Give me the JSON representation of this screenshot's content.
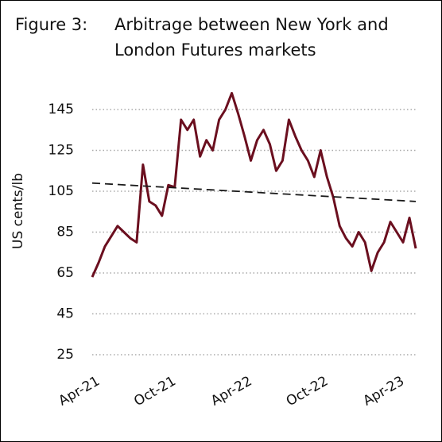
{
  "chart_data": {
    "type": "line",
    "figure_label": "Figure 3:",
    "title": "Arbitrage between New York and London Futures markets",
    "y_label": "US cents/lb",
    "categories": [
      "Apr-21",
      null,
      null,
      null,
      null,
      null,
      null,
      null,
      null,
      null,
      null,
      null,
      "Oct-21",
      null,
      null,
      null,
      null,
      null,
      null,
      null,
      null,
      null,
      null,
      null,
      "Apr-22",
      null,
      null,
      null,
      null,
      null,
      null,
      null,
      null,
      null,
      null,
      null,
      "Oct-22",
      null,
      null,
      null,
      null,
      null,
      null,
      null,
      null,
      null,
      null,
      null,
      "Apr-23",
      null,
      null,
      null
    ],
    "series": [
      {
        "color": "#6b0f1f",
        "values": [
          63,
          70,
          78,
          83,
          88,
          85,
          82,
          80,
          118,
          100,
          98,
          93,
          108,
          107,
          140,
          135,
          140,
          122,
          130,
          125,
          140,
          145,
          153,
          143,
          132,
          120,
          130,
          135,
          128,
          115,
          120,
          140,
          132,
          125,
          120,
          112,
          125,
          112,
          102,
          88,
          82,
          78,
          85,
          80,
          66,
          75,
          80,
          90,
          85,
          80,
          92,
          77
        ]
      }
    ],
    "trend": {
      "color": "#1a1a1a",
      "values": [
        109,
        100
      ]
    },
    "ylim": [
      20,
      155
    ],
    "yticks": [
      25,
      45,
      65,
      85,
      105,
      125,
      145
    ],
    "grid": true
  }
}
